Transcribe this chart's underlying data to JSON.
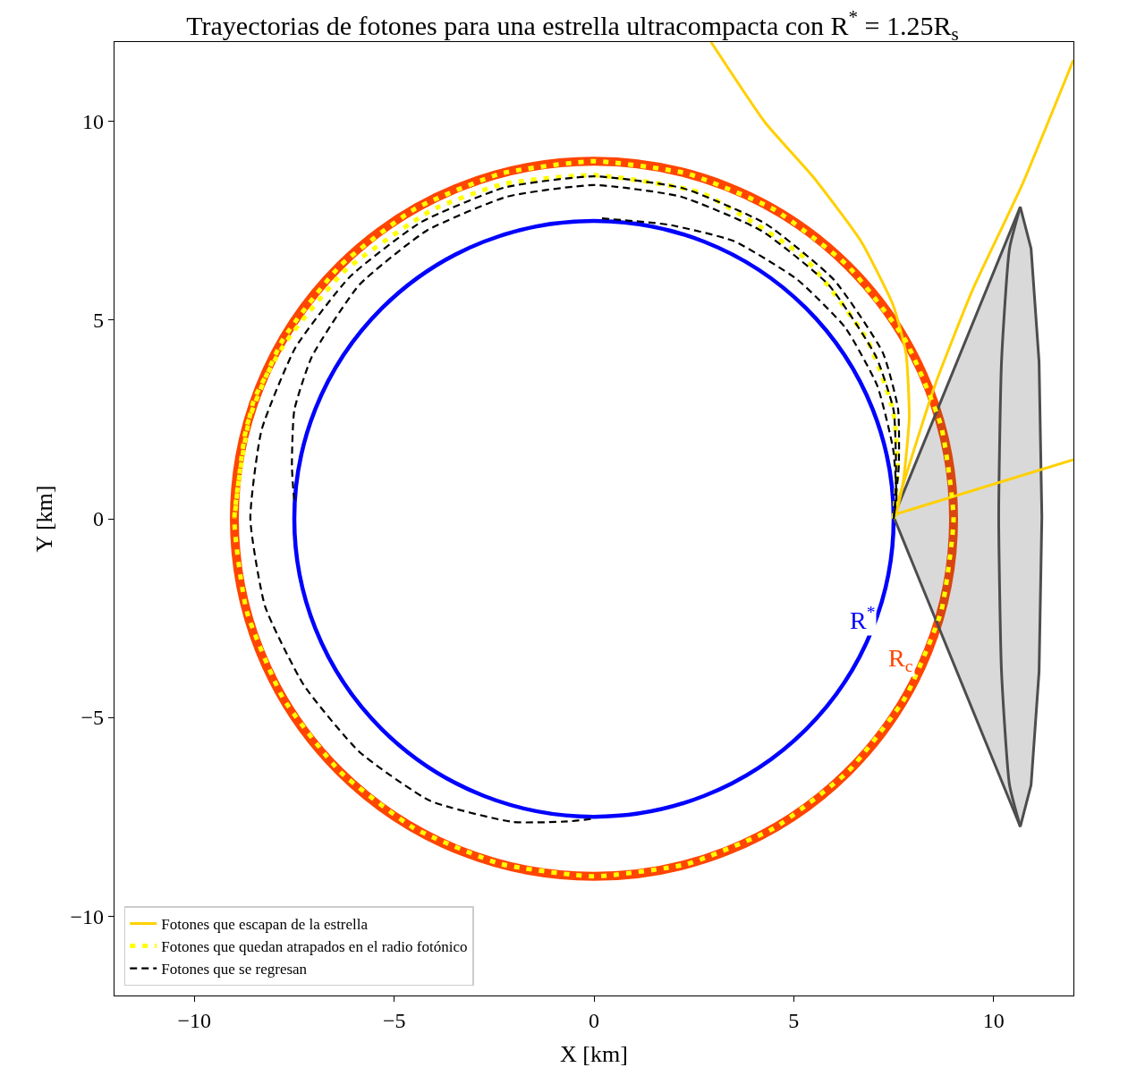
{
  "chart_data": {
    "type": "line",
    "title": "Trayectorias de fotones para una estrella ultracompacta con R$^{*}$ = 1.25R$_{s}$",
    "xlabel": "X [km]",
    "ylabel": "Y [km]",
    "xlim": [
      -12,
      12
    ],
    "ylim": [
      -12,
      12
    ],
    "xticks": [
      {
        "value": -10,
        "label": "−10"
      },
      {
        "value": -5,
        "label": "−5"
      },
      0,
      5,
      10
    ],
    "yticks": [
      {
        "value": -10,
        "label": "−10"
      },
      {
        "value": -5,
        "label": "−5"
      },
      0,
      5,
      10
    ],
    "grid": false,
    "legend": "bottom left",
    "marker": "none",
    "annotations": [
      "R$^{*}$",
      "R$_{c}$"
    ],
    "series": [
      {
        "type": "area",
        "color": "#4d4d4d",
        "x": [
          7.5,
          10.67,
          10.94,
          11.14,
          11.21,
          11.14,
          10.94,
          10.67,
          7.5
        ],
        "values": [
          0.05,
          7.85,
          6.8,
          3.95,
          0.05,
          -3.85,
          -6.7,
          -7.75,
          0.05
        ]
      },
      {
        "color": "#4d4d4d",
        "line_style": "solid",
        "x": [
          10.67,
          10.4,
          10.2,
          10.13,
          10.2,
          10.4,
          10.67
        ],
        "values": [
          7.85,
          6.8,
          3.95,
          0.05,
          -3.85,
          -6.7,
          -7.75
        ]
      },
      {
        "name": "Fotones que escapan de la estrella",
        "color": "#ffd000",
        "line_style": "solid",
        "x": [
          7.57,
          12.0
        ],
        "values": [
          0.12,
          1.49
        ]
      },
      {
        "color": "#ffd000",
        "line_style": "solid",
        "x": [
          7.5,
          8.53,
          9.48,
          10.7,
          12.0
        ],
        "values": [
          0.1,
          3.35,
          5.77,
          8.37,
          11.55
        ]
      },
      {
        "color": "#ffd000",
        "line_style": "solid",
        "x": [
          7.55,
          7.74,
          7.89,
          7.81,
          7.49,
          6.68,
          5.49,
          4.28,
          2.93
        ],
        "values": [
          0.05,
          0.93,
          2.54,
          4.16,
          5.37,
          6.99,
          8.6,
          9.98,
          12.0
        ]
      },
      {
        "name": "Fotones que quedan atrapados en el radio fotónico",
        "color": "#ffff00",
        "line_style": "dotted",
        "x": [
          7.5,
          7.54,
          7.6,
          7.49,
          6.85,
          5.25,
          2.69,
          0,
          -2.26,
          -4.04,
          -6.24,
          -7.71,
          -8.52,
          -9,
          -8.69,
          -7.79,
          -6.36,
          -4.5,
          -2.33,
          0,
          2.33,
          4.5,
          6.36,
          7.79,
          8.69,
          9,
          8.69,
          7.79,
          6.36,
          4.5,
          2.33,
          0,
          -2.33,
          -4.5,
          -6.36,
          -7.79,
          -8.69,
          -9
        ],
        "values": [
          0,
          0.39,
          1.4,
          2.71,
          4.48,
          6.58,
          8.2,
          8.65,
          8.43,
          7.78,
          6.24,
          4.45,
          2.96,
          0,
          -2.33,
          -4.5,
          -6.36,
          -7.79,
          -8.69,
          -9,
          -8.69,
          -7.79,
          -6.36,
          -4.5,
          -2.33,
          0,
          2.33,
          4.5,
          6.36,
          7.79,
          8.69,
          9,
          8.69,
          7.79,
          6.36,
          4.5,
          2.33,
          0
        ]
      },
      {
        "name": "Fotones que se regresan",
        "color": "#000000",
        "line_style": "dashed",
        "x": [
          7.5,
          7.54,
          7.56,
          7.5,
          7.06,
          5.88,
          4.19,
          2.17,
          0,
          -2.17,
          -4.19,
          -5.88,
          -7.06,
          -7.5,
          -7.56,
          -7.52,
          -7.49
        ],
        "values": [
          0,
          0.39,
          1.33,
          2.73,
          4.08,
          5.88,
          7.25,
          8.11,
          8.4,
          8.11,
          7.25,
          5.88,
          4.08,
          2.73,
          1.33,
          0.66,
          0.39
        ]
      },
      {
        "color": "#000000",
        "line_style": "dashed",
        "x": [
          7.5,
          7.54,
          7.63,
          7.61,
          7.23,
          6.01,
          4.29,
          2.23,
          0,
          -2.23,
          -4.32,
          -6.1,
          -7.47,
          -8.32,
          -8.6,
          -8.23,
          -7.26,
          -5.87,
          -4.1,
          -2.04,
          -0.67,
          0
        ],
        "values": [
          0,
          0.39,
          1.35,
          2.77,
          4.18,
          6.01,
          7.43,
          8.32,
          8.62,
          8.34,
          7.47,
          6.1,
          4.31,
          2.23,
          0,
          -2.21,
          -4.19,
          -5.87,
          -7.1,
          -7.63,
          -7.62,
          -7.55
        ]
      },
      {
        "color": "#000000",
        "line_style": "dashed",
        "x": [
          0.2,
          1.88,
          3.5,
          5.09,
          6.29,
          7.09,
          7.49,
          7.57,
          7.5
        ],
        "values": [
          7.56,
          7.4,
          6.99,
          6.02,
          4.81,
          3.35,
          1.74,
          0.52,
          0.05
        ]
      }
    ]
  }
}
